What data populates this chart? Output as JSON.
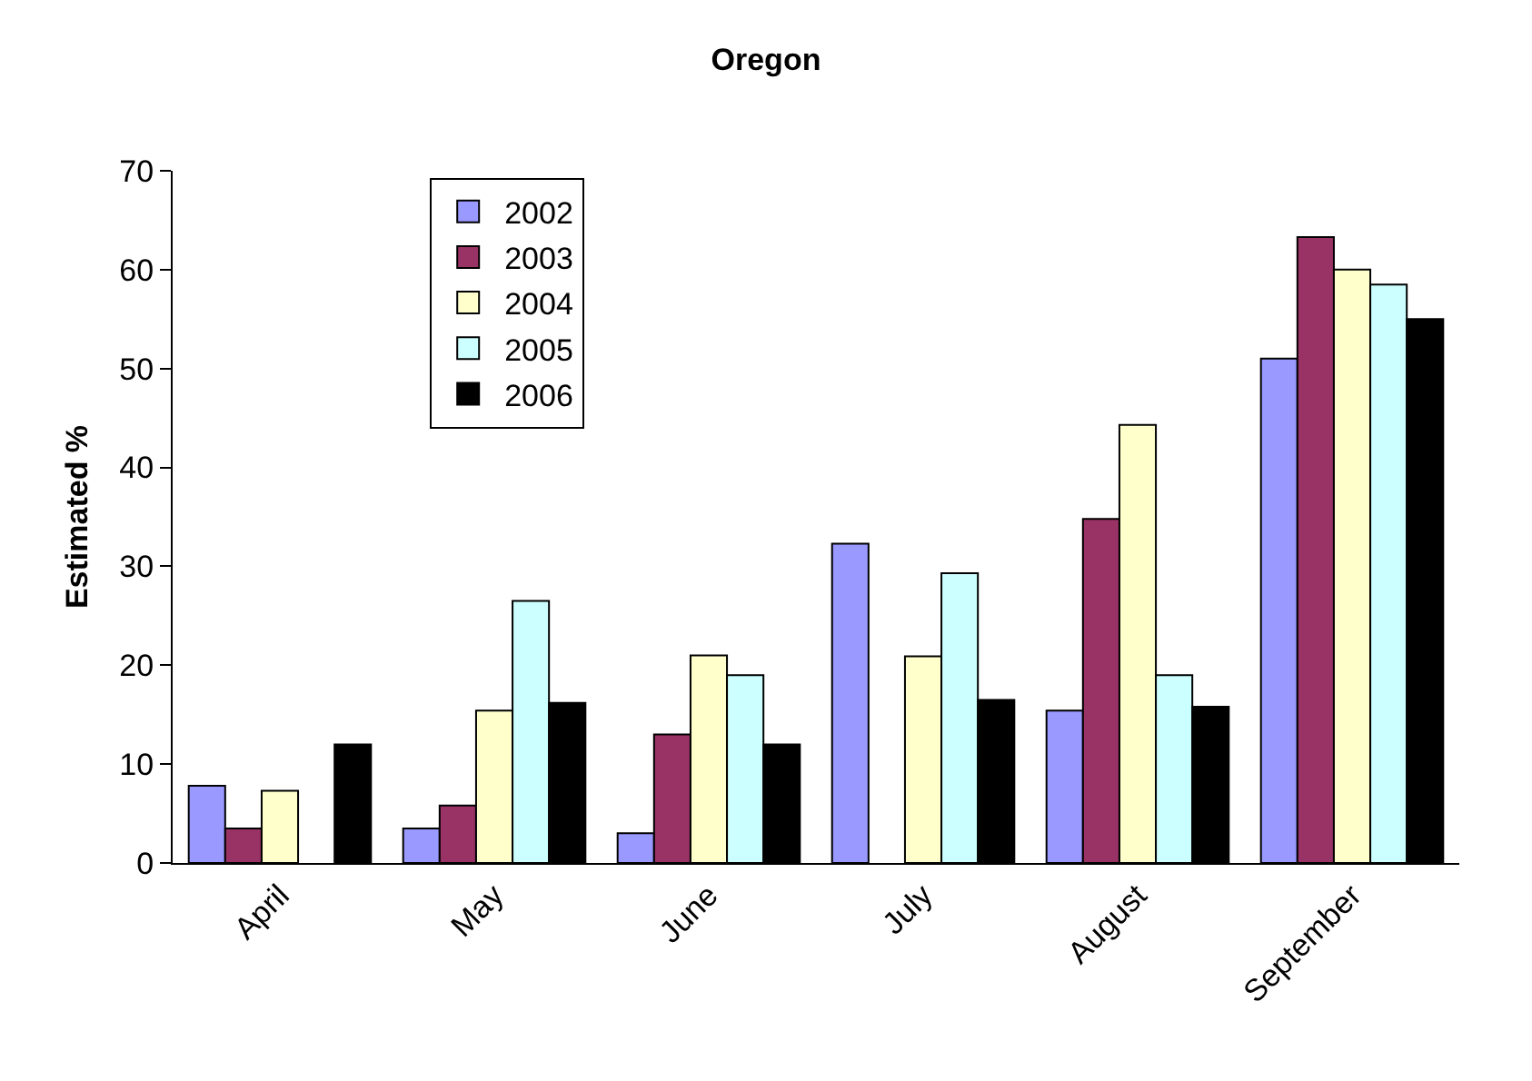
{
  "chart_data": {
    "type": "bar",
    "title": "Oregon",
    "ylabel": "Estimated %",
    "categories": [
      "April",
      "May",
      "June",
      "July",
      "August",
      "September"
    ],
    "series": [
      {
        "name": "2002",
        "color": "#9999ff",
        "values": [
          7.8,
          3.5,
          3,
          32.3,
          15.4,
          51
        ]
      },
      {
        "name": "2003",
        "color": "#993366",
        "values": [
          3.5,
          5.8,
          13,
          null,
          34.8,
          63.3
        ]
      },
      {
        "name": "2004",
        "color": "#ffffcc",
        "values": [
          7.3,
          15.4,
          21,
          20.9,
          44.3,
          60
        ]
      },
      {
        "name": "2005",
        "color": "#ccffff",
        "values": [
          null,
          26.5,
          19,
          29.3,
          19,
          58.5
        ]
      },
      {
        "name": "2006",
        "color": "#000000",
        "values": [
          12,
          16.2,
          12,
          16.5,
          15.8,
          55
        ]
      }
    ],
    "ylim": [
      0,
      70
    ],
    "yticks": [
      0,
      10,
      20,
      30,
      40,
      50,
      60,
      70
    ],
    "grid": false,
    "legend": "top left"
  }
}
